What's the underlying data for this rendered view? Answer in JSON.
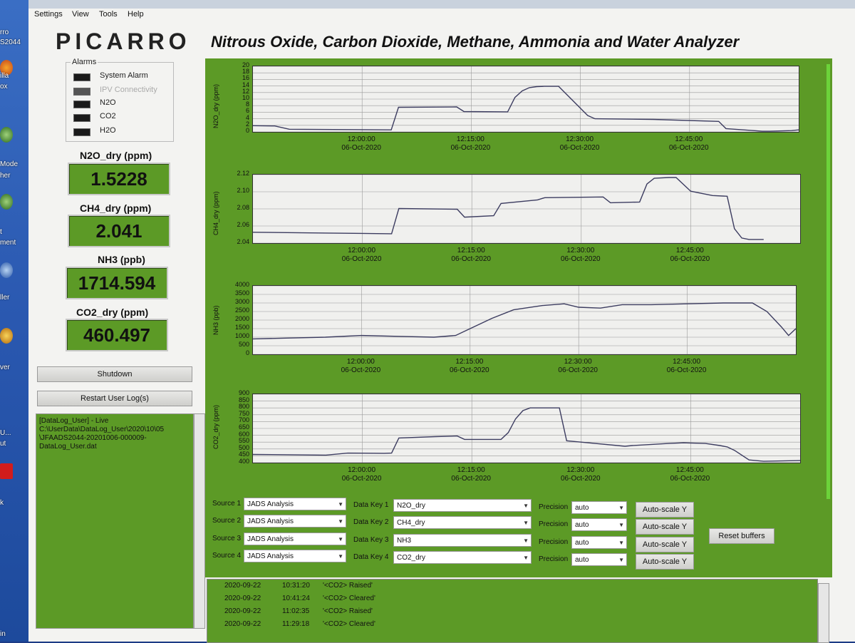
{
  "desktop": {
    "labels": [
      "rro",
      "S2044",
      "illa",
      "ox",
      "Mode",
      "her",
      "t",
      "ment",
      "ller",
      "ver",
      "U...",
      "ut",
      "k",
      "in"
    ]
  },
  "menu": [
    "Settings",
    "View",
    "Tools",
    "Help"
  ],
  "logo": "PICARRO",
  "title": "Nitrous Oxide, Carbon Dioxide, Methane, Ammonia and Water Analyzer",
  "alarms": {
    "title": "Alarms",
    "items": [
      {
        "label": "System Alarm",
        "state": "off"
      },
      {
        "label": "IPV Connectivity",
        "state": "disabled"
      },
      {
        "label": "N2O",
        "state": "off"
      },
      {
        "label": "CO2",
        "state": "off"
      },
      {
        "label": "H2O",
        "state": "off"
      }
    ]
  },
  "readouts": [
    {
      "label": "N2O_dry (ppm)",
      "value": "1.5228"
    },
    {
      "label": "CH4_dry (ppm)",
      "value": "2.041"
    },
    {
      "label": "NH3 (ppb)",
      "value": "1714.594"
    },
    {
      "label": "CO2_dry (ppm)",
      "value": "460.497"
    }
  ],
  "buttons": {
    "shutdown": "Shutdown",
    "restart_log": "Restart User Log(s)",
    "reset_buffers": "Reset buffers",
    "autoscale": "Auto-scale Y"
  },
  "log": {
    "lines": [
      "[DataLog_User] - Live",
      "C:\\UserData\\DataLog_User\\2020\\10\\05",
      "\\JFAADS2044-20201006-000009-",
      "DataLog_User.dat"
    ]
  },
  "xaxis": {
    "ticks": [
      {
        "time": "12:00:00",
        "date": "06-Oct-2020"
      },
      {
        "time": "12:15:00",
        "date": "06-Oct-2020"
      },
      {
        "time": "12:30:00",
        "date": "06-Oct-2020"
      },
      {
        "time": "12:45:00",
        "date": "06-Oct-2020"
      }
    ]
  },
  "chart_data": [
    {
      "type": "line",
      "ylabel": "N2O_dry (ppm)",
      "ylim": [
        0,
        20
      ],
      "yticks": [
        "20",
        "18",
        "16",
        "14",
        "12",
        "10",
        "8",
        "6",
        "4",
        "2",
        "0"
      ],
      "xticks": [
        "12:00:00",
        "12:15:00",
        "12:30:00",
        "12:45:00"
      ],
      "grid": true,
      "x_minutes": [
        -15,
        -12,
        -10,
        4,
        5,
        13,
        14,
        20,
        21,
        22,
        23,
        24,
        25,
        27,
        31,
        32,
        40,
        49,
        50,
        55,
        56,
        59,
        60
      ],
      "values": [
        1.9,
        1.8,
        0.8,
        0.6,
        7.5,
        7.6,
        6.2,
        6.1,
        10.5,
        12.5,
        13.5,
        13.8,
        13.9,
        13.9,
        5.0,
        4.0,
        3.8,
        3.2,
        1.0,
        0.2,
        0.2,
        0.4,
        0.6
      ]
    },
    {
      "type": "line",
      "ylabel": "CH4_dry (ppm)",
      "ylim": [
        2.03,
        2.125
      ],
      "yticks": [
        "2.12",
        "2.10",
        "2.08",
        "2.06",
        "2.04"
      ],
      "xticks": [
        "12:00:00",
        "12:15:00",
        "12:30:00",
        "12:45:00"
      ],
      "grid": true,
      "x_minutes": [
        -15,
        -5,
        4,
        5,
        13,
        14,
        18,
        19,
        24,
        25,
        33,
        34,
        38,
        39,
        40,
        42,
        43,
        45,
        47,
        48,
        50,
        51,
        52,
        53,
        55
      ],
      "values": [
        2.045,
        2.044,
        2.043,
        2.078,
        2.077,
        2.066,
        2.068,
        2.085,
        2.09,
        2.093,
        2.094,
        2.086,
        2.087,
        2.112,
        2.12,
        2.121,
        2.121,
        2.102,
        2.098,
        2.096,
        2.095,
        2.05,
        2.037,
        2.035,
        2.035
      ]
    },
    {
      "type": "line",
      "ylabel": "NH3 (ppb)",
      "ylim": [
        0,
        4000
      ],
      "yticks": [
        "4000",
        "3500",
        "3000",
        "2500",
        "2000",
        "1500",
        "1000",
        "500",
        "0"
      ],
      "xticks": [
        "12:00:00",
        "12:15:00",
        "12:30:00",
        "12:45:00"
      ],
      "grid": true,
      "x_minutes": [
        -15,
        -10,
        -5,
        0,
        5,
        10,
        13,
        15,
        18,
        21,
        25,
        28,
        30,
        33,
        36,
        40,
        45,
        50,
        54,
        56,
        58,
        59,
        60
      ],
      "values": [
        900,
        950,
        1000,
        1100,
        1050,
        1000,
        1100,
        1500,
        2100,
        2600,
        2850,
        2950,
        2750,
        2700,
        2900,
        2900,
        2950,
        3000,
        3000,
        2500,
        1600,
        1100,
        1500
      ]
    },
    {
      "type": "line",
      "ylabel": "CO2_dry (ppm)",
      "ylim": [
        400,
        900
      ],
      "yticks": [
        "900",
        "850",
        "800",
        "750",
        "700",
        "650",
        "600",
        "550",
        "500",
        "450",
        "400"
      ],
      "xticks": [
        "12:00:00",
        "12:15:00",
        "12:30:00",
        "12:45:00"
      ],
      "grid": true,
      "x_minutes": [
        -15,
        -5,
        -2,
        3,
        4,
        5,
        10,
        13,
        14,
        19,
        20,
        21,
        22,
        23,
        26,
        27,
        28,
        31,
        36,
        37,
        42,
        44,
        47,
        49,
        50,
        51,
        53,
        55,
        60
      ],
      "values": [
        460,
        455,
        470,
        468,
        470,
        580,
        590,
        595,
        570,
        570,
        620,
        720,
        780,
        800,
        800,
        800,
        560,
        545,
        520,
        525,
        540,
        545,
        540,
        525,
        515,
        490,
        420,
        410,
        415
      ]
    }
  ],
  "controls": {
    "sources": [
      {
        "label": "Source 1",
        "value": "JADS Analysis"
      },
      {
        "label": "Source 2",
        "value": "JADS Analysis"
      },
      {
        "label": "Source 3",
        "value": "JADS Analysis"
      },
      {
        "label": "Source 4",
        "value": "JADS Analysis"
      }
    ],
    "datakeys": [
      {
        "label": "Data Key 1",
        "value": "N2O_dry"
      },
      {
        "label": "Data Key 2",
        "value": "CH4_dry"
      },
      {
        "label": "Data Key 3",
        "value": "NH3"
      },
      {
        "label": "Data Key 4",
        "value": "CO2_dry"
      }
    ],
    "precision": [
      {
        "label": "Precision",
        "value": "auto"
      },
      {
        "label": "Precision",
        "value": "auto"
      },
      {
        "label": "Precision",
        "value": "auto"
      },
      {
        "label": "Precision",
        "value": "auto"
      }
    ]
  },
  "events": [
    {
      "date": "2020-09-22",
      "time": "10:31:20",
      "msg": "'<CO2> Raised'"
    },
    {
      "date": "2020-09-22",
      "time": "10:41:24",
      "msg": "'<CO2> Cleared'"
    },
    {
      "date": "2020-09-22",
      "time": "11:02:35",
      "msg": "'<CO2> Raised'"
    },
    {
      "date": "2020-09-22",
      "time": "11:29:18",
      "msg": "'<CO2> Cleared'"
    }
  ],
  "colors": {
    "panel_green": "#5c9a26",
    "bright_green": "#6cd33a"
  }
}
